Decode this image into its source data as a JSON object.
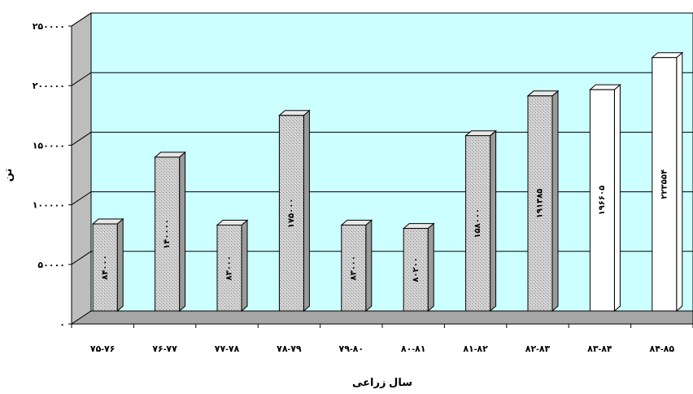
{
  "chart_data": {
    "type": "bar",
    "title": "",
    "xlabel": "سال زراعی",
    "ylabel": "تن",
    "ylim": [
      0,
      250000
    ],
    "y_ticks": [
      "۰",
      "۵۰۰۰۰",
      "۱۰۰۰۰۰",
      "۱۵۰۰۰۰",
      "۲۰۰۰۰۰",
      "۲۵۰۰۰۰"
    ],
    "grid": true,
    "legend": "none",
    "categories": [
      "۷۵-۷۶",
      "۷۶-۷۷",
      "۷۷-۷۸",
      "۷۸-۷۹",
      "۷۹-۸۰",
      "۸۰-۸۱",
      "۸۱-۸۲",
      "۸۲-۸۳",
      "۸۳-۸۴",
      "۸۴-۸۵"
    ],
    "values": [
      84000,
      140000,
      83000,
      175000,
      83000,
      80200,
      158000,
      191385,
      196605,
      223554
    ],
    "data_labels": [
      "۸۴۰۰۰",
      "۱۴۰۰۰۰",
      "۸۳۰۰۰",
      "۱۷۵۰۰۰",
      "۸۳۰۰۰",
      "۸۰۲۰۰",
      "۱۵۸۰۰۰",
      "۱۹۱۳۸۵",
      "۱۹۶۶۰۵",
      "۲۲۳۵۵۴"
    ],
    "bar_styles": [
      "gray",
      "gray",
      "gray",
      "gray",
      "gray",
      "gray",
      "gray",
      "gray",
      "white",
      "white"
    ],
    "colors": {
      "plot_back": "#ccffff",
      "floor": "#a6a6a6",
      "bar_gray_front": "#cdcdcd",
      "bar_gray_top": "#e8e8e8",
      "bar_gray_side": "#9a9a9a",
      "bar_white_front": "#ffffff",
      "bar_white_top": "#ffffff",
      "bar_white_side": "#ffffff",
      "gridline": "#000000",
      "outline": "#000000"
    }
  }
}
